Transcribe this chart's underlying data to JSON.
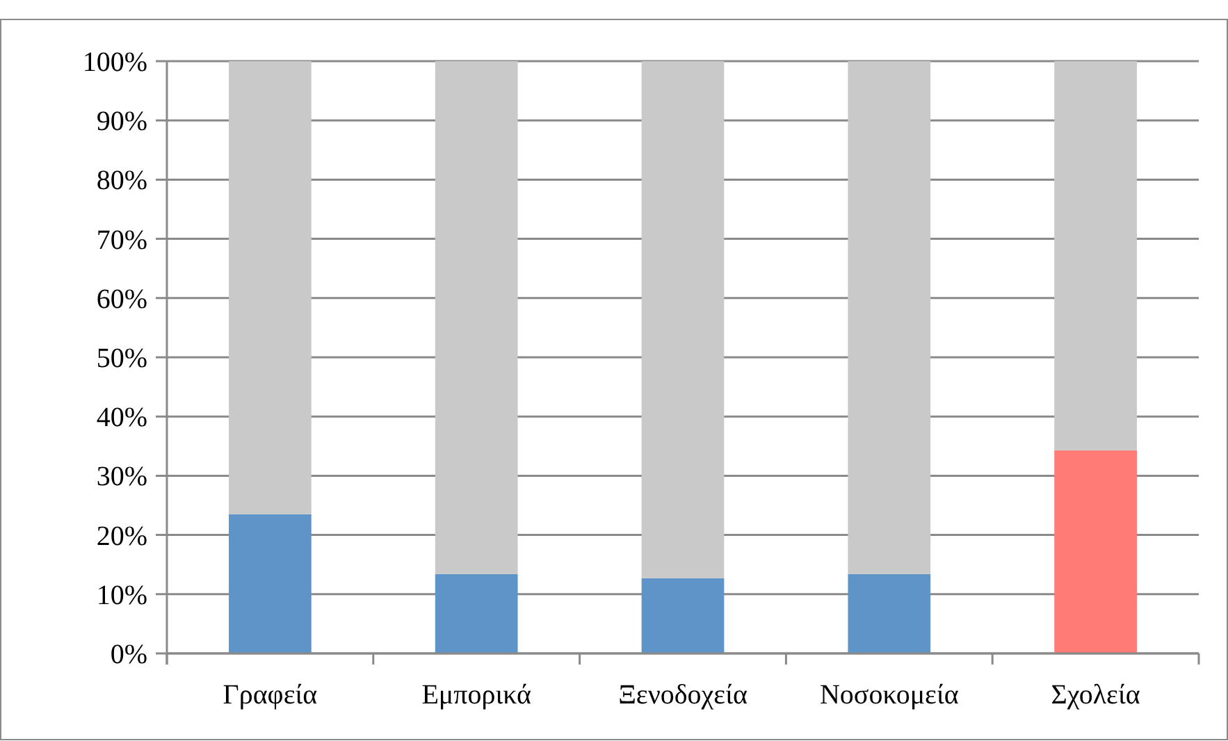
{
  "chart_data": {
    "type": "bar",
    "stacked": true,
    "categories": [
      "Γραφεία",
      "Εμπορικά",
      "Ξενοδοχεία",
      "Νοσοκομεία",
      "Σχολεία"
    ],
    "series": [
      {
        "colors": [
          "#5f94c8",
          "#5f94c8",
          "#5f94c8",
          "#5f94c8",
          "#ff7b76"
        ],
        "values": [
          23.5,
          13.4,
          12.7,
          13.4,
          34.3
        ]
      },
      {
        "color": "#c9c9c9",
        "values": [
          76.5,
          86.6,
          87.3,
          86.6,
          65.7
        ]
      }
    ],
    "ylim": [
      0,
      100
    ],
    "yticks": [
      {
        "value": 0,
        "label": "0%"
      },
      {
        "value": 10,
        "label": "10%"
      },
      {
        "value": 20,
        "label": "20%"
      },
      {
        "value": 30,
        "label": "30%"
      },
      {
        "value": 40,
        "label": "40%"
      },
      {
        "value": 50,
        "label": "50%"
      },
      {
        "value": 60,
        "label": "60%"
      },
      {
        "value": 70,
        "label": "70%"
      },
      {
        "value": 80,
        "label": "80%"
      },
      {
        "value": 90,
        "label": "90%"
      },
      {
        "value": 100,
        "label": "100%"
      }
    ],
    "grid": "y"
  }
}
